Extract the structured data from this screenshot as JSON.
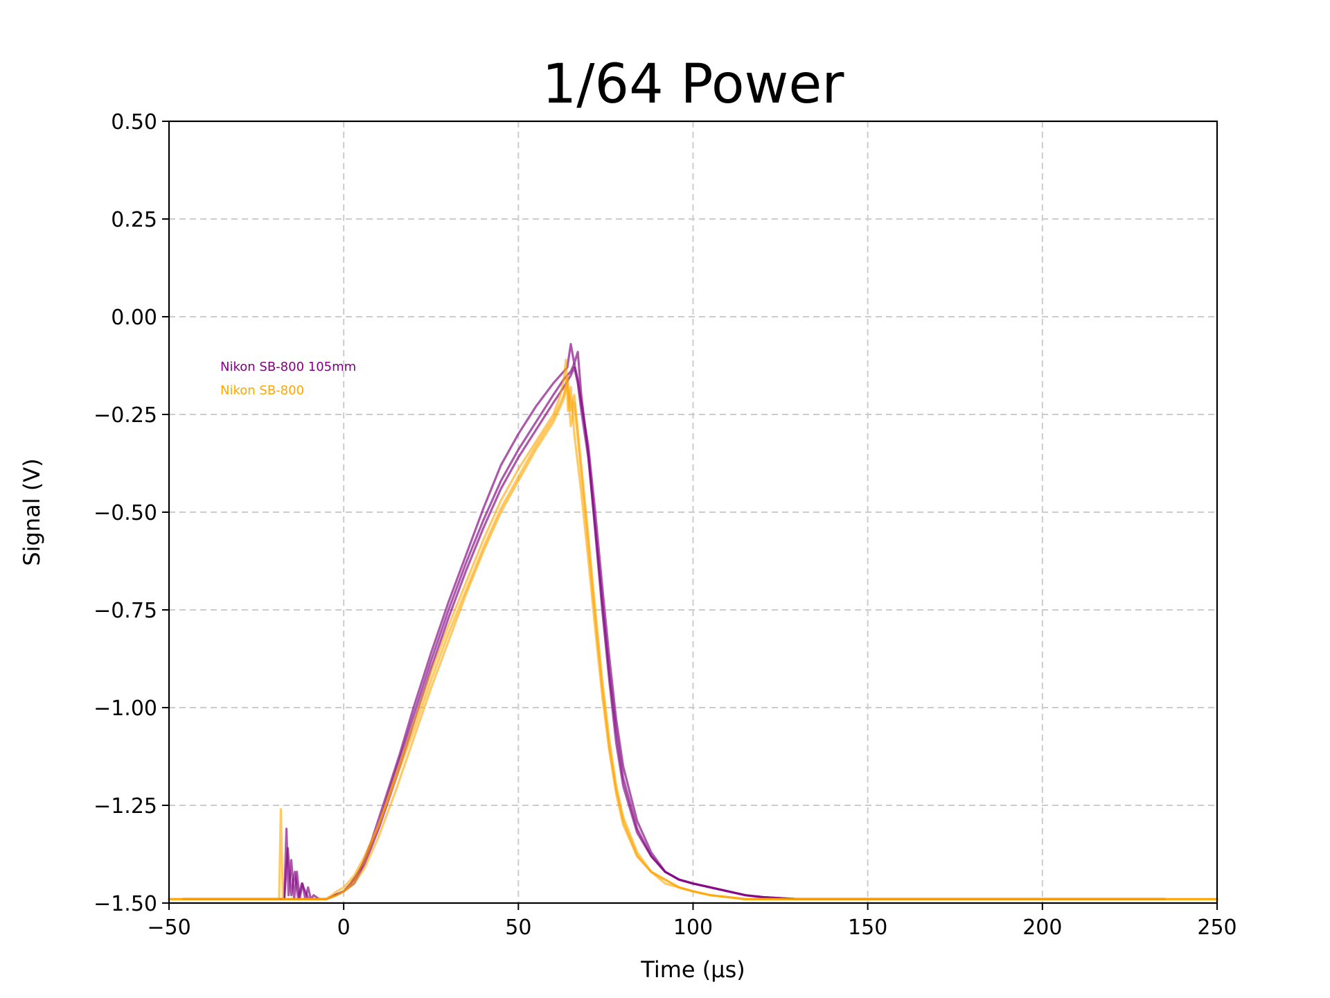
{
  "chart_data": {
    "type": "line",
    "title": "1/64 Power",
    "xlabel": "Time (µs)",
    "ylabel": "Signal (V)",
    "xlim": [
      -50,
      250
    ],
    "ylim": [
      -1.5,
      0.5
    ],
    "xticks": [
      -50,
      0,
      50,
      100,
      150,
      200,
      250
    ],
    "xtick_labels": [
      "−50",
      "0",
      "50",
      "100",
      "150",
      "200",
      "250"
    ],
    "yticks": [
      0.5,
      0.25,
      0.0,
      -0.25,
      -0.5,
      -0.75,
      -1.0,
      -1.25,
      -1.5
    ],
    "ytick_labels": [
      "0.50",
      "0.25",
      "0.00",
      "−0.25",
      "−0.50",
      "−0.75",
      "−1.00",
      "−1.25",
      "−1.50"
    ],
    "grid": true,
    "legend_position": "upper-left (inside plot, text only)",
    "legend_entries": [
      {
        "label": "Nikon SB-800 105mm",
        "color": "#800080"
      },
      {
        "label": "Nikon SB-800",
        "color": "#ffa500"
      }
    ],
    "series": [
      {
        "legend": "Nikon SB-800 105mm",
        "color": "#800080",
        "opacity": 0.65,
        "x": [
          -46,
          -20,
          -17,
          -16.4,
          -15.8,
          -15,
          -14.2,
          -13.4,
          -12.6,
          -11.8,
          -11,
          -10.2,
          -9.4,
          -8.6,
          -7,
          -5,
          0,
          2,
          5,
          8,
          12,
          16,
          20,
          25,
          30,
          35,
          40,
          45,
          50,
          55,
          60,
          62,
          64,
          65,
          66,
          67,
          68,
          70,
          72,
          74,
          76,
          78,
          80,
          84,
          88,
          92,
          96,
          100,
          105,
          110,
          115,
          120,
          130,
          140,
          150,
          170,
          200,
          235
        ],
        "y": [
          -1.49,
          -1.49,
          -1.49,
          -1.31,
          -1.48,
          -1.39,
          -1.49,
          -1.42,
          -1.49,
          -1.45,
          -1.49,
          -1.46,
          -1.49,
          -1.48,
          -1.49,
          -1.49,
          -1.47,
          -1.45,
          -1.41,
          -1.34,
          -1.23,
          -1.12,
          -1.0,
          -0.86,
          -0.73,
          -0.61,
          -0.49,
          -0.38,
          -0.3,
          -0.23,
          -0.17,
          -0.15,
          -0.13,
          -0.07,
          -0.12,
          -0.09,
          -0.2,
          -0.35,
          -0.55,
          -0.75,
          -0.93,
          -1.09,
          -1.2,
          -1.32,
          -1.38,
          -1.42,
          -1.44,
          -1.45,
          -1.46,
          -1.47,
          -1.48,
          -1.485,
          -1.49,
          -1.49,
          -1.49,
          -1.49,
          -1.49,
          -1.49
        ]
      },
      {
        "legend": "Nikon SB-800 105mm",
        "color": "#800080",
        "opacity": 0.65,
        "x": [
          -46,
          -20,
          -17,
          -16,
          -15,
          -14,
          -13,
          -12,
          -10,
          -8,
          -5,
          0,
          3,
          6,
          10,
          15,
          20,
          25,
          30,
          35,
          40,
          45,
          50,
          55,
          60,
          63,
          65,
          66,
          67,
          68,
          70,
          72,
          74,
          76,
          78,
          80,
          84,
          88,
          92,
          96,
          100,
          105,
          110,
          115,
          120,
          130,
          140,
          150,
          170,
          200,
          235
        ],
        "y": [
          -1.49,
          -1.49,
          -1.49,
          -1.36,
          -1.48,
          -1.42,
          -1.49,
          -1.45,
          -1.49,
          -1.49,
          -1.49,
          -1.47,
          -1.44,
          -1.39,
          -1.3,
          -1.16,
          -1.02,
          -0.88,
          -0.75,
          -0.63,
          -0.52,
          -0.42,
          -0.34,
          -0.27,
          -0.2,
          -0.16,
          -0.14,
          -0.12,
          -0.16,
          -0.22,
          -0.33,
          -0.5,
          -0.69,
          -0.87,
          -1.03,
          -1.15,
          -1.29,
          -1.37,
          -1.42,
          -1.44,
          -1.45,
          -1.46,
          -1.47,
          -1.48,
          -1.485,
          -1.49,
          -1.49,
          -1.49,
          -1.49,
          -1.49,
          -1.49
        ]
      },
      {
        "legend": "Nikon SB-800 105mm",
        "color": "#800080",
        "opacity": 0.65,
        "x": [
          -46,
          -5,
          0,
          3,
          6,
          10,
          15,
          20,
          25,
          30,
          35,
          40,
          45,
          50,
          55,
          60,
          63,
          65,
          66,
          67,
          68,
          70,
          72,
          74,
          76,
          78,
          80,
          84,
          88,
          92,
          96,
          100,
          105,
          110,
          115,
          120,
          130,
          140,
          150,
          170,
          200,
          235
        ],
        "y": [
          -1.49,
          -1.49,
          -1.47,
          -1.45,
          -1.4,
          -1.31,
          -1.18,
          -1.04,
          -0.9,
          -0.77,
          -0.65,
          -0.54,
          -0.44,
          -0.36,
          -0.29,
          -0.22,
          -0.18,
          -0.15,
          -0.13,
          -0.17,
          -0.24,
          -0.36,
          -0.54,
          -0.73,
          -0.91,
          -1.06,
          -1.18,
          -1.31,
          -1.38,
          -1.42,
          -1.44,
          -1.45,
          -1.46,
          -1.47,
          -1.48,
          -1.485,
          -1.49,
          -1.49,
          -1.49,
          -1.49,
          -1.49,
          -1.49
        ]
      },
      {
        "legend": "Nikon SB-800",
        "color": "#ffa500",
        "opacity": 0.6,
        "x": [
          -50,
          -20,
          -18.5,
          -18,
          -17.4,
          -16,
          -14,
          -10,
          -5,
          -2,
          0,
          3,
          6,
          10,
          15,
          20,
          25,
          30,
          35,
          40,
          45,
          50,
          55,
          60,
          62,
          63,
          63.6,
          64.2,
          65,
          66,
          68,
          70,
          72,
          74,
          76,
          78,
          80,
          84,
          88,
          92,
          96,
          100,
          105,
          110,
          115,
          120,
          130,
          140,
          150,
          170,
          200,
          250
        ],
        "y": [
          -1.49,
          -1.49,
          -1.49,
          -1.26,
          -1.49,
          -1.49,
          -1.49,
          -1.49,
          -1.49,
          -1.48,
          -1.47,
          -1.44,
          -1.39,
          -1.3,
          -1.17,
          -1.04,
          -0.91,
          -0.79,
          -0.68,
          -0.57,
          -0.47,
          -0.39,
          -0.32,
          -0.25,
          -0.2,
          -0.16,
          -0.11,
          -0.24,
          -0.18,
          -0.3,
          -0.45,
          -0.62,
          -0.8,
          -0.97,
          -1.11,
          -1.22,
          -1.3,
          -1.38,
          -1.42,
          -1.44,
          -1.46,
          -1.47,
          -1.48,
          -1.485,
          -1.49,
          -1.49,
          -1.49,
          -1.49,
          -1.49,
          -1.49,
          -1.49,
          -1.49
        ]
      },
      {
        "legend": "Nikon SB-800",
        "color": "#ffa500",
        "opacity": 0.6,
        "x": [
          -50,
          -5,
          -2,
          0,
          3,
          6,
          10,
          15,
          20,
          25,
          30,
          35,
          40,
          45,
          50,
          55,
          60,
          62,
          63,
          64,
          65,
          66,
          68,
          70,
          72,
          74,
          76,
          78,
          80,
          84,
          88,
          92,
          96,
          100,
          105,
          110,
          115,
          120,
          130,
          140,
          150,
          170,
          200,
          250
        ],
        "y": [
          -1.49,
          -1.49,
          -1.47,
          -1.46,
          -1.43,
          -1.38,
          -1.3,
          -1.18,
          -1.06,
          -0.93,
          -0.81,
          -0.7,
          -0.59,
          -0.49,
          -0.41,
          -0.33,
          -0.26,
          -0.22,
          -0.2,
          -0.15,
          -0.24,
          -0.2,
          -0.38,
          -0.56,
          -0.75,
          -0.93,
          -1.08,
          -1.2,
          -1.28,
          -1.37,
          -1.42,
          -1.44,
          -1.46,
          -1.47,
          -1.48,
          -1.485,
          -1.49,
          -1.49,
          -1.49,
          -1.49,
          -1.49,
          -1.49,
          -1.49,
          -1.49
        ]
      },
      {
        "legend": "Nikon SB-800",
        "color": "#ffa500",
        "opacity": 0.6,
        "x": [
          -50,
          -5,
          -2,
          0,
          3,
          6,
          10,
          15,
          20,
          25,
          30,
          35,
          40,
          45,
          50,
          55,
          60,
          62,
          63,
          64,
          65,
          66,
          68,
          70,
          72,
          74,
          76,
          78,
          80,
          84,
          88,
          92,
          96,
          100,
          105,
          110,
          115,
          120,
          130,
          140,
          150,
          170,
          200,
          250
        ],
        "y": [
          -1.49,
          -1.49,
          -1.48,
          -1.47,
          -1.45,
          -1.41,
          -1.33,
          -1.21,
          -1.08,
          -0.95,
          -0.83,
          -0.71,
          -0.6,
          -0.5,
          -0.42,
          -0.34,
          -0.27,
          -0.23,
          -0.21,
          -0.17,
          -0.28,
          -0.22,
          -0.4,
          -0.58,
          -0.77,
          -0.95,
          -1.1,
          -1.21,
          -1.29,
          -1.38,
          -1.42,
          -1.45,
          -1.46,
          -1.47,
          -1.48,
          -1.485,
          -1.49,
          -1.49,
          -1.49,
          -1.49,
          -1.49,
          -1.49,
          -1.49,
          -1.49
        ]
      }
    ]
  }
}
